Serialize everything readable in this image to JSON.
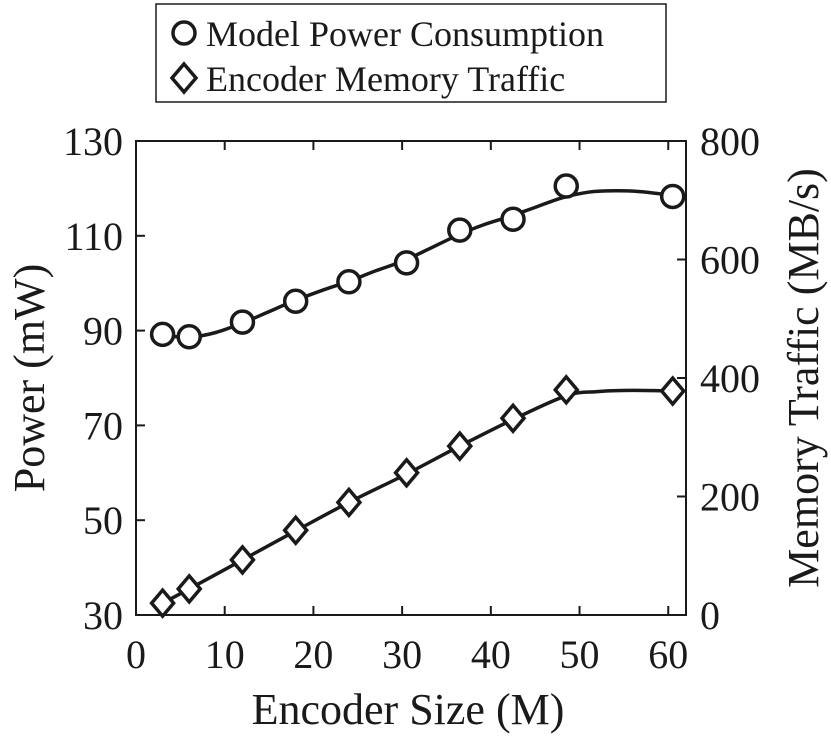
{
  "chart_data": {
    "type": "line",
    "title": "",
    "xlabel": "Encoder Size (M)",
    "ylabel": "Power (mW)",
    "y2label": "Memory Traffic (MB/s)",
    "xlim": [
      0,
      62
    ],
    "ylim": [
      30,
      130
    ],
    "y2lim": [
      0,
      800
    ],
    "xticks": [
      0,
      10,
      20,
      30,
      40,
      50,
      60
    ],
    "yticks": [
      30,
      50,
      70,
      90,
      110,
      130
    ],
    "y2ticks": [
      0,
      200,
      400,
      600,
      800
    ],
    "grid": false,
    "legend_position": "top-center",
    "x": [
      3,
      6,
      12,
      18,
      24,
      30.5,
      36.5,
      42.5,
      48.5,
      60.5
    ],
    "series": [
      {
        "name": "Model Power Consumption",
        "axis": "left",
        "marker": "circle",
        "values": [
          89.2,
          88.7,
          91.8,
          96.2,
          100.3,
          104.3,
          111.2,
          113.5,
          120.5,
          118.3
        ],
        "fit_x": [
          3,
          6,
          9,
          12,
          15,
          18,
          21,
          24,
          27,
          30,
          33,
          36,
          39,
          42,
          45,
          48,
          51,
          54,
          57,
          60.5
        ],
        "fit_y": [
          89.0,
          88.6,
          89.6,
          91.6,
          94.0,
          96.4,
          98.5,
          100.4,
          102.6,
          104.6,
          107.2,
          109.9,
          112.2,
          114.0,
          116.0,
          118.0,
          119.2,
          119.5,
          119.3,
          118.5
        ]
      },
      {
        "name": "Encoder Memory Traffic",
        "axis": "right",
        "marker": "diamond",
        "values": [
          20,
          44,
          93,
          143,
          190,
          240,
          285,
          332,
          380,
          378
        ],
        "fit_x": [
          3,
          6,
          12,
          18,
          24,
          30.5,
          36.5,
          42.5,
          48.5,
          52,
          56,
          60.5
        ],
        "fit_y": [
          20,
          44,
          93,
          142,
          190,
          238,
          285,
          330,
          370,
          377,
          379,
          378
        ]
      }
    ]
  }
}
